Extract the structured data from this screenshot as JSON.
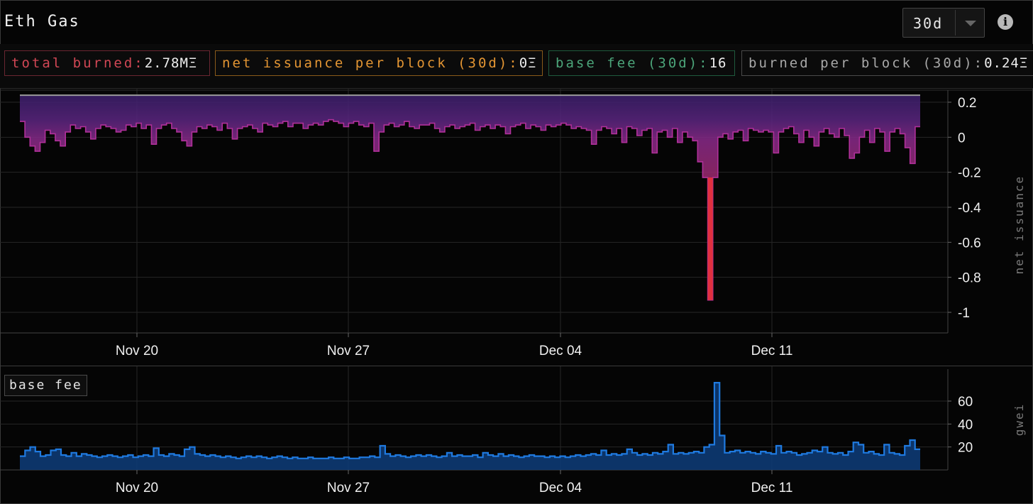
{
  "header": {
    "title": "Eth Gas",
    "range_value": "30d",
    "info_icon": "info-icon",
    "dropdown_icon": "chevron-down-icon"
  },
  "stats": [
    {
      "key": "total burned:",
      "value": "2.78MΞ",
      "color": "#d24755"
    },
    {
      "key": "net issuance per block (30d):",
      "value": "0Ξ",
      "color": "#e39533"
    },
    {
      "key": "base fee (30d):",
      "value": "16",
      "color": "#4ca57a"
    },
    {
      "key": "burned per block (30d):",
      "value": "0.24Ξ",
      "color": "#a8a8a8"
    }
  ],
  "colors": {
    "issuance_fill_top": "#3b1f6b",
    "issuance_fill_bottom": "#8a2a8a",
    "issuance_line": "#b0309a",
    "issuance_spike": "#e0303f",
    "reward_line": "#9a9a9a",
    "basefee_line": "#1f7ae0",
    "basefee_fill": "#0d3a73"
  },
  "chart_data": [
    {
      "type": "area",
      "ylabel": "net issuance",
      "x_ticks": [
        "Nov 20",
        "Nov 27",
        "Dec 04",
        "Dec 11"
      ],
      "y_ticks": [
        "0.2",
        "0",
        "-0.2",
        "-0.4",
        "-0.6",
        "-0.8",
        "-1"
      ],
      "ylim": [
        -1.1,
        0.26
      ],
      "grid": true,
      "series": [
        {
          "values": [
            0.09,
            0.0,
            -0.05,
            -0.08,
            -0.03,
            0.04,
            0.02,
            -0.02,
            -0.05,
            0.03,
            0.07,
            0.05,
            0.06,
            0.03,
            -0.01,
            0.05,
            0.07,
            0.06,
            0.05,
            0.03,
            0.04,
            0.07,
            0.06,
            0.08,
            0.05,
            0.07,
            -0.04,
            0.05,
            0.07,
            0.08,
            0.05,
            0.03,
            -0.02,
            -0.05,
            0.03,
            0.06,
            0.05,
            0.07,
            0.06,
            0.04,
            0.08,
            0.05,
            -0.01,
            0.05,
            0.06,
            0.07,
            0.05,
            0.03,
            0.08,
            0.07,
            0.06,
            0.08,
            0.09,
            0.06,
            0.08,
            0.08,
            0.05,
            0.07,
            0.08,
            0.07,
            0.09,
            0.1,
            0.09,
            0.08,
            0.06,
            0.08,
            0.09,
            0.07,
            0.06,
            0.08,
            -0.08,
            0.03,
            0.07,
            0.08,
            0.06,
            0.07,
            0.09,
            0.06,
            0.05,
            0.07,
            0.07,
            0.08,
            0.05,
            0.03,
            0.06,
            0.07,
            0.05,
            0.06,
            0.07,
            0.08,
            0.04,
            0.06,
            0.07,
            0.05,
            0.07,
            0.06,
            0.02,
            0.06,
            0.07,
            0.08,
            0.05,
            0.07,
            0.06,
            0.04,
            0.07,
            0.06,
            0.07,
            0.08,
            0.07,
            0.05,
            0.06,
            0.05,
            0.04,
            -0.04,
            0.04,
            0.06,
            0.05,
            0.02,
            0.05,
            -0.03,
            0.06,
            0.05,
            0.01,
            0.04,
            0.05,
            -0.09,
            0.03,
            0.04,
            0.0,
            0.05,
            -0.03,
            0.03,
            0.0,
            -0.02,
            -0.14,
            -0.23,
            -0.93,
            -0.23,
            0.0,
            0.02,
            -0.01,
            0.03,
            0.04,
            -0.02,
            0.05,
            0.04,
            0.03,
            0.04,
            0.03,
            -0.09,
            0.03,
            0.05,
            0.06,
            0.02,
            -0.03,
            0.04,
            0.0,
            -0.05,
            0.03,
            0.05,
            0.02,
            0.0,
            0.05,
            0.01,
            -0.12,
            -0.09,
            0.0,
            0.04,
            -0.03,
            0.05,
            0.03,
            -0.08,
            0.03,
            0.05,
            0.02,
            -0.06,
            -0.15,
            0.06
          ]
        },
        {
          "values_note": "block reward line",
          "values": [
            0.24
          ]
        }
      ]
    },
    {
      "type": "area",
      "ylabel": "gwei",
      "x_ticks": [
        "Nov 20",
        "Nov 27",
        "Dec 04",
        "Dec 11"
      ],
      "y_ticks": [
        "60",
        "40",
        "20"
      ],
      "ylim": [
        0,
        82
      ],
      "legend": "base fee",
      "series": [
        {
          "name": "base fee",
          "values": [
            12,
            17,
            20,
            16,
            12,
            13,
            17,
            18,
            13,
            12,
            15,
            12,
            14,
            13,
            12,
            11,
            12,
            13,
            12,
            11,
            12,
            13,
            11,
            12,
            13,
            12,
            19,
            13,
            12,
            14,
            13,
            12,
            18,
            20,
            14,
            13,
            12,
            13,
            12,
            11,
            12,
            11,
            10,
            11,
            12,
            11,
            12,
            11,
            10,
            11,
            12,
            11,
            10,
            11,
            10,
            10,
            11,
            10,
            10,
            10,
            11,
            10,
            10,
            11,
            10,
            10,
            11,
            11,
            12,
            11,
            21,
            14,
            12,
            13,
            12,
            11,
            12,
            13,
            12,
            13,
            12,
            11,
            12,
            15,
            12,
            13,
            12,
            12,
            13,
            11,
            15,
            13,
            12,
            14,
            12,
            13,
            12,
            11,
            12,
            13,
            12,
            12,
            11,
            12,
            11,
            12,
            11,
            12,
            13,
            12,
            13,
            14,
            13,
            17,
            13,
            14,
            13,
            14,
            18,
            15,
            13,
            14,
            13,
            15,
            14,
            16,
            22,
            14,
            15,
            14,
            15,
            16,
            15,
            20,
            22,
            76,
            30,
            15,
            16,
            17,
            15,
            16,
            15,
            14,
            16,
            15,
            14,
            21,
            15,
            16,
            15,
            13,
            14,
            15,
            17,
            16,
            20,
            15,
            14,
            15,
            13,
            16,
            24,
            22,
            15,
            16,
            14,
            13,
            22,
            15,
            14,
            13,
            21,
            26,
            18
          ]
        }
      ]
    }
  ]
}
